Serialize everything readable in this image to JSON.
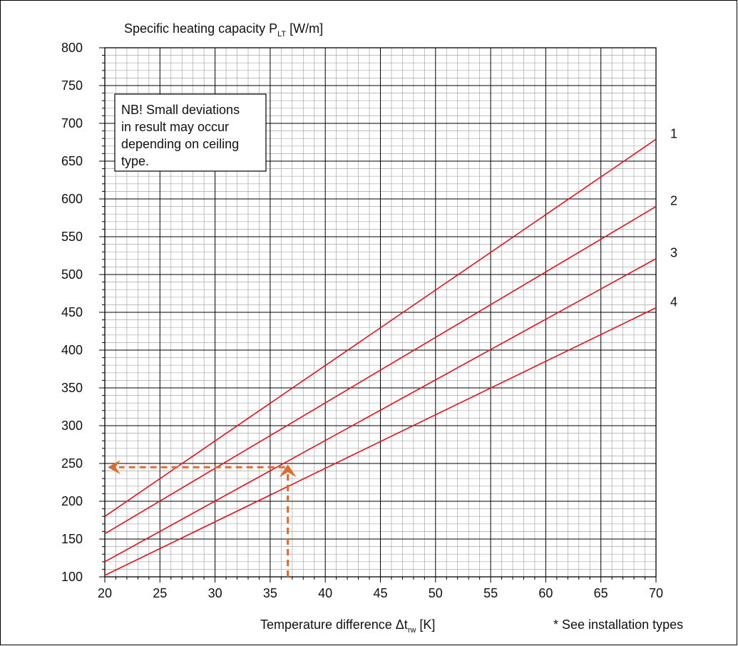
{
  "chart_data": {
    "type": "line",
    "ylabel": "Specific heating capacity P",
    "ylabel_sub": "LT",
    "ylabel_unit": " [W/m]",
    "xlabel_pre": "Temperature difference Δt",
    "xlabel_sub": "rw",
    "xlabel_unit": " [K]",
    "footnote": "* See installation types",
    "note_lines": [
      "NB! Small deviations",
      "in result may occur",
      "depending on ceiling",
      "type."
    ],
    "xlim": [
      20,
      70
    ],
    "ylim": [
      100,
      800
    ],
    "x_ticks": [
      20,
      25,
      30,
      35,
      40,
      45,
      50,
      55,
      60,
      65,
      70
    ],
    "y_ticks": [
      100,
      150,
      200,
      250,
      300,
      350,
      400,
      450,
      500,
      550,
      600,
      650,
      700,
      750,
      800
    ],
    "grid": true,
    "series": [
      {
        "name": "1",
        "x": [
          20,
          70
        ],
        "y": [
          180,
          679
        ]
      },
      {
        "name": "2",
        "x": [
          20,
          70
        ],
        "y": [
          157,
          590
        ]
      },
      {
        "name": "3",
        "x": [
          20,
          70
        ],
        "y": [
          120,
          521
        ]
      },
      {
        "name": "4",
        "x": [
          20,
          70
        ],
        "y": [
          102,
          456
        ]
      }
    ],
    "example": {
      "x": 36.6,
      "y": 245
    },
    "colors": {
      "curve": "#e8101a",
      "example": "#e06b2e",
      "grid": "#a8a8a8",
      "grid_major": "#000000"
    }
  }
}
